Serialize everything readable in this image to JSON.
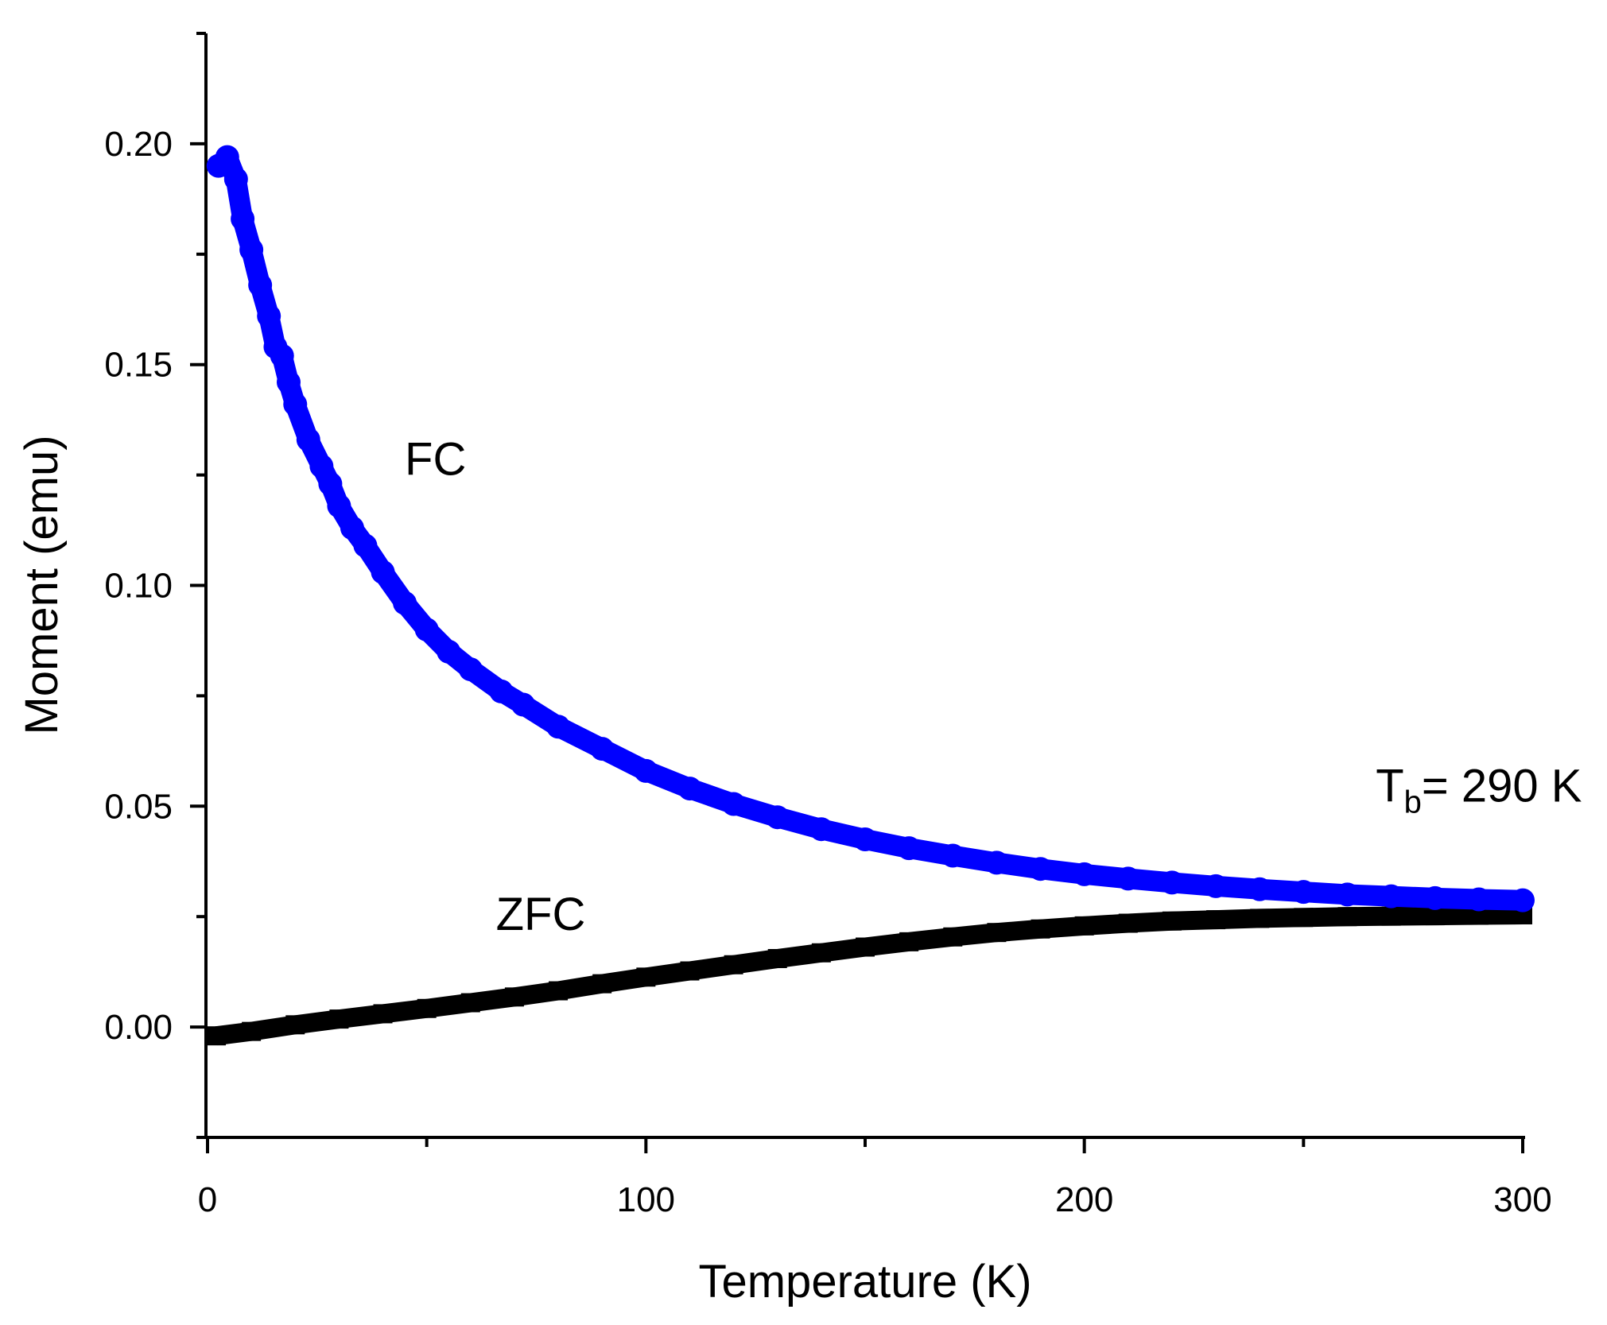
{
  "chart_data": {
    "type": "scatter",
    "title": "",
    "xlabel": "Temperature (K)",
    "ylabel": "Moment (emu)",
    "xlim": [
      0,
      300
    ],
    "ylim": [
      -0.025,
      0.225
    ],
    "x_ticks": [
      0,
      100,
      200,
      300
    ],
    "x_tick_labels": [
      "0",
      "100",
      "200",
      "300"
    ],
    "x_minor_ticks": [
      50,
      150,
      250
    ],
    "y_ticks": [
      0.0,
      0.05,
      0.1,
      0.15,
      0.2
    ],
    "y_tick_labels": [
      "0.00",
      "0.05",
      "0.10",
      "0.15",
      "0.20"
    ],
    "y_minor_ticks": [
      -0.025,
      0.025,
      0.075,
      0.125,
      0.175,
      0.225
    ],
    "grid": false,
    "series": [
      {
        "name": "FC",
        "color": "#0000ff",
        "marker": "circle",
        "x": [
          2.5,
          4.5,
          6.5,
          8,
          10,
          12,
          14,
          15.5,
          17,
          18.5,
          20,
          23,
          26,
          28,
          30,
          33,
          36,
          40,
          45,
          50,
          55,
          60,
          67,
          72,
          80,
          90,
          100,
          110,
          120,
          130,
          140,
          150,
          160,
          170,
          180,
          190,
          200,
          210,
          220,
          230,
          240,
          250,
          260,
          270,
          280,
          290,
          300
        ],
        "y": [
          0.195,
          0.197,
          0.192,
          0.183,
          0.176,
          0.168,
          0.161,
          0.154,
          0.152,
          0.146,
          0.141,
          0.133,
          0.127,
          0.123,
          0.118,
          0.113,
          0.109,
          0.103,
          0.096,
          0.09,
          0.085,
          0.081,
          0.076,
          0.073,
          0.068,
          0.063,
          0.058,
          0.054,
          0.0505,
          0.0475,
          0.0448,
          0.0425,
          0.0405,
          0.0388,
          0.0372,
          0.0358,
          0.0346,
          0.0336,
          0.0327,
          0.0319,
          0.0312,
          0.0306,
          0.03,
          0.0296,
          0.0292,
          0.0289,
          0.0287
        ]
      },
      {
        "name": "ZFC",
        "color": "#000000",
        "marker": "square",
        "x": [
          2,
          10,
          20,
          30,
          40,
          50,
          60,
          70,
          80,
          90,
          100,
          110,
          120,
          130,
          140,
          150,
          160,
          170,
          180,
          190,
          200,
          210,
          220,
          230,
          240,
          250,
          260,
          270,
          280,
          290,
          300
        ],
        "y": [
          -0.002,
          -0.001,
          0.0005,
          0.0018,
          0.003,
          0.0042,
          0.0055,
          0.0068,
          0.0082,
          0.0098,
          0.0113,
          0.0127,
          0.0141,
          0.0155,
          0.0168,
          0.0181,
          0.0193,
          0.0204,
          0.0214,
          0.0222,
          0.0229,
          0.0235,
          0.024,
          0.0243,
          0.0246,
          0.0248,
          0.025,
          0.0251,
          0.0252,
          0.0253,
          0.0254
        ]
      }
    ],
    "annotations": [
      {
        "id": "fc",
        "text": "FC",
        "x": 52,
        "y": 0.125
      },
      {
        "id": "zfc",
        "text": "ZFC",
        "x": 76,
        "y": 0.022
      },
      {
        "id": "tb",
        "main": "T",
        "sub": "b",
        "rest": "= 290 K",
        "x": 290,
        "y": 0.051
      }
    ]
  }
}
